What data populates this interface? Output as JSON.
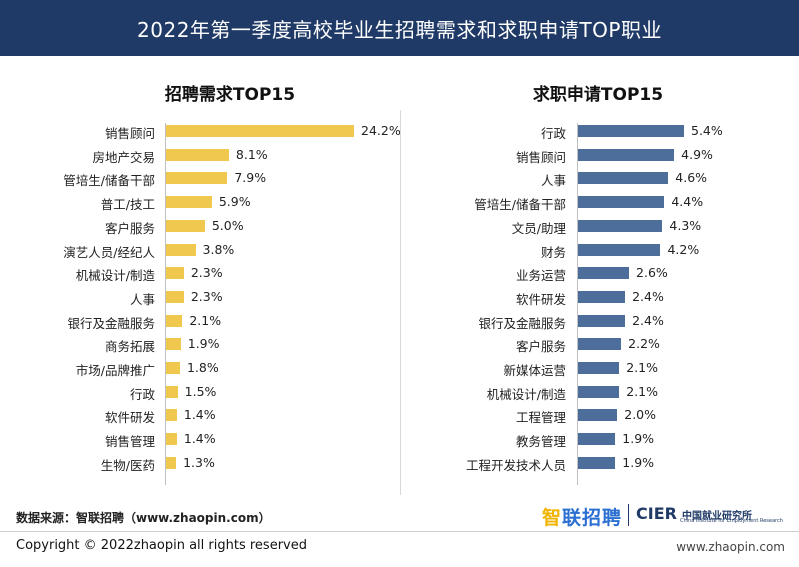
{
  "header": {
    "title": "2022年第一季度高校毕业生招聘需求和求职申请TOP职业"
  },
  "colors": {
    "header_bg": "#1f3a66",
    "left_bar": "#f0c84e",
    "right_bar": "#4d6e9a"
  },
  "chart_data": [
    {
      "type": "bar",
      "orientation": "horizontal",
      "title": "招聘需求TOP15",
      "unit": "%",
      "categories": [
        "销售顾问",
        "房地产交易",
        "管培生/储备干部",
        "普工/技工",
        "客户服务",
        "演艺人员/经纪人",
        "机械设计/制造",
        "人事",
        "银行及金融服务",
        "商务拓展",
        "市场/品牌推广",
        "行政",
        "软件研发",
        "销售管理",
        "生物/医药"
      ],
      "values": [
        24.2,
        8.1,
        7.9,
        5.9,
        5.0,
        3.8,
        2.3,
        2.3,
        2.1,
        1.9,
        1.8,
        1.5,
        1.4,
        1.4,
        1.3
      ],
      "value_labels": [
        "24.2%",
        "8.1%",
        "7.9%",
        "5.9%",
        "5.0%",
        "3.8%",
        "2.3%",
        "2.3%",
        "2.1%",
        "1.9%",
        "1.8%",
        "1.5%",
        "1.4%",
        "1.4%",
        "1.3%"
      ],
      "color": "#f0c84e"
    },
    {
      "type": "bar",
      "orientation": "horizontal",
      "title": "求职申请TOP15",
      "unit": "%",
      "categories": [
        "行政",
        "销售顾问",
        "人事",
        "管培生/储备干部",
        "文员/助理",
        "财务",
        "业务运营",
        "软件研发",
        "银行及金融服务",
        "客户服务",
        "新媒体运营",
        "机械设计/制造",
        "工程管理",
        "教务管理",
        "工程开发技术人员"
      ],
      "values": [
        5.4,
        4.9,
        4.6,
        4.4,
        4.3,
        4.2,
        2.6,
        2.4,
        2.4,
        2.2,
        2.1,
        2.1,
        2.0,
        1.9,
        1.9
      ],
      "value_labels": [
        "5.4%",
        "4.9%",
        "4.6%",
        "4.4%",
        "4.3%",
        "4.2%",
        "2.6%",
        "2.4%",
        "2.4%",
        "2.2%",
        "2.1%",
        "2.1%",
        "2.0%",
        "1.9%",
        "1.9%"
      ],
      "color": "#4d6e9a"
    }
  ],
  "footer": {
    "source": "数据来源：智联招聘（www.zhaopin.com）",
    "logo_zhaopin_a": "智",
    "logo_zhaopin_b": "联招聘",
    "logo_cier": "CIER",
    "logo_cier_cn": "中国就业研究所",
    "logo_cier_en": "China Institute for Employment Research",
    "copyright": "Copyright ©  2022zhaopin all rights reserved",
    "website": "www.zhaopin.com"
  }
}
